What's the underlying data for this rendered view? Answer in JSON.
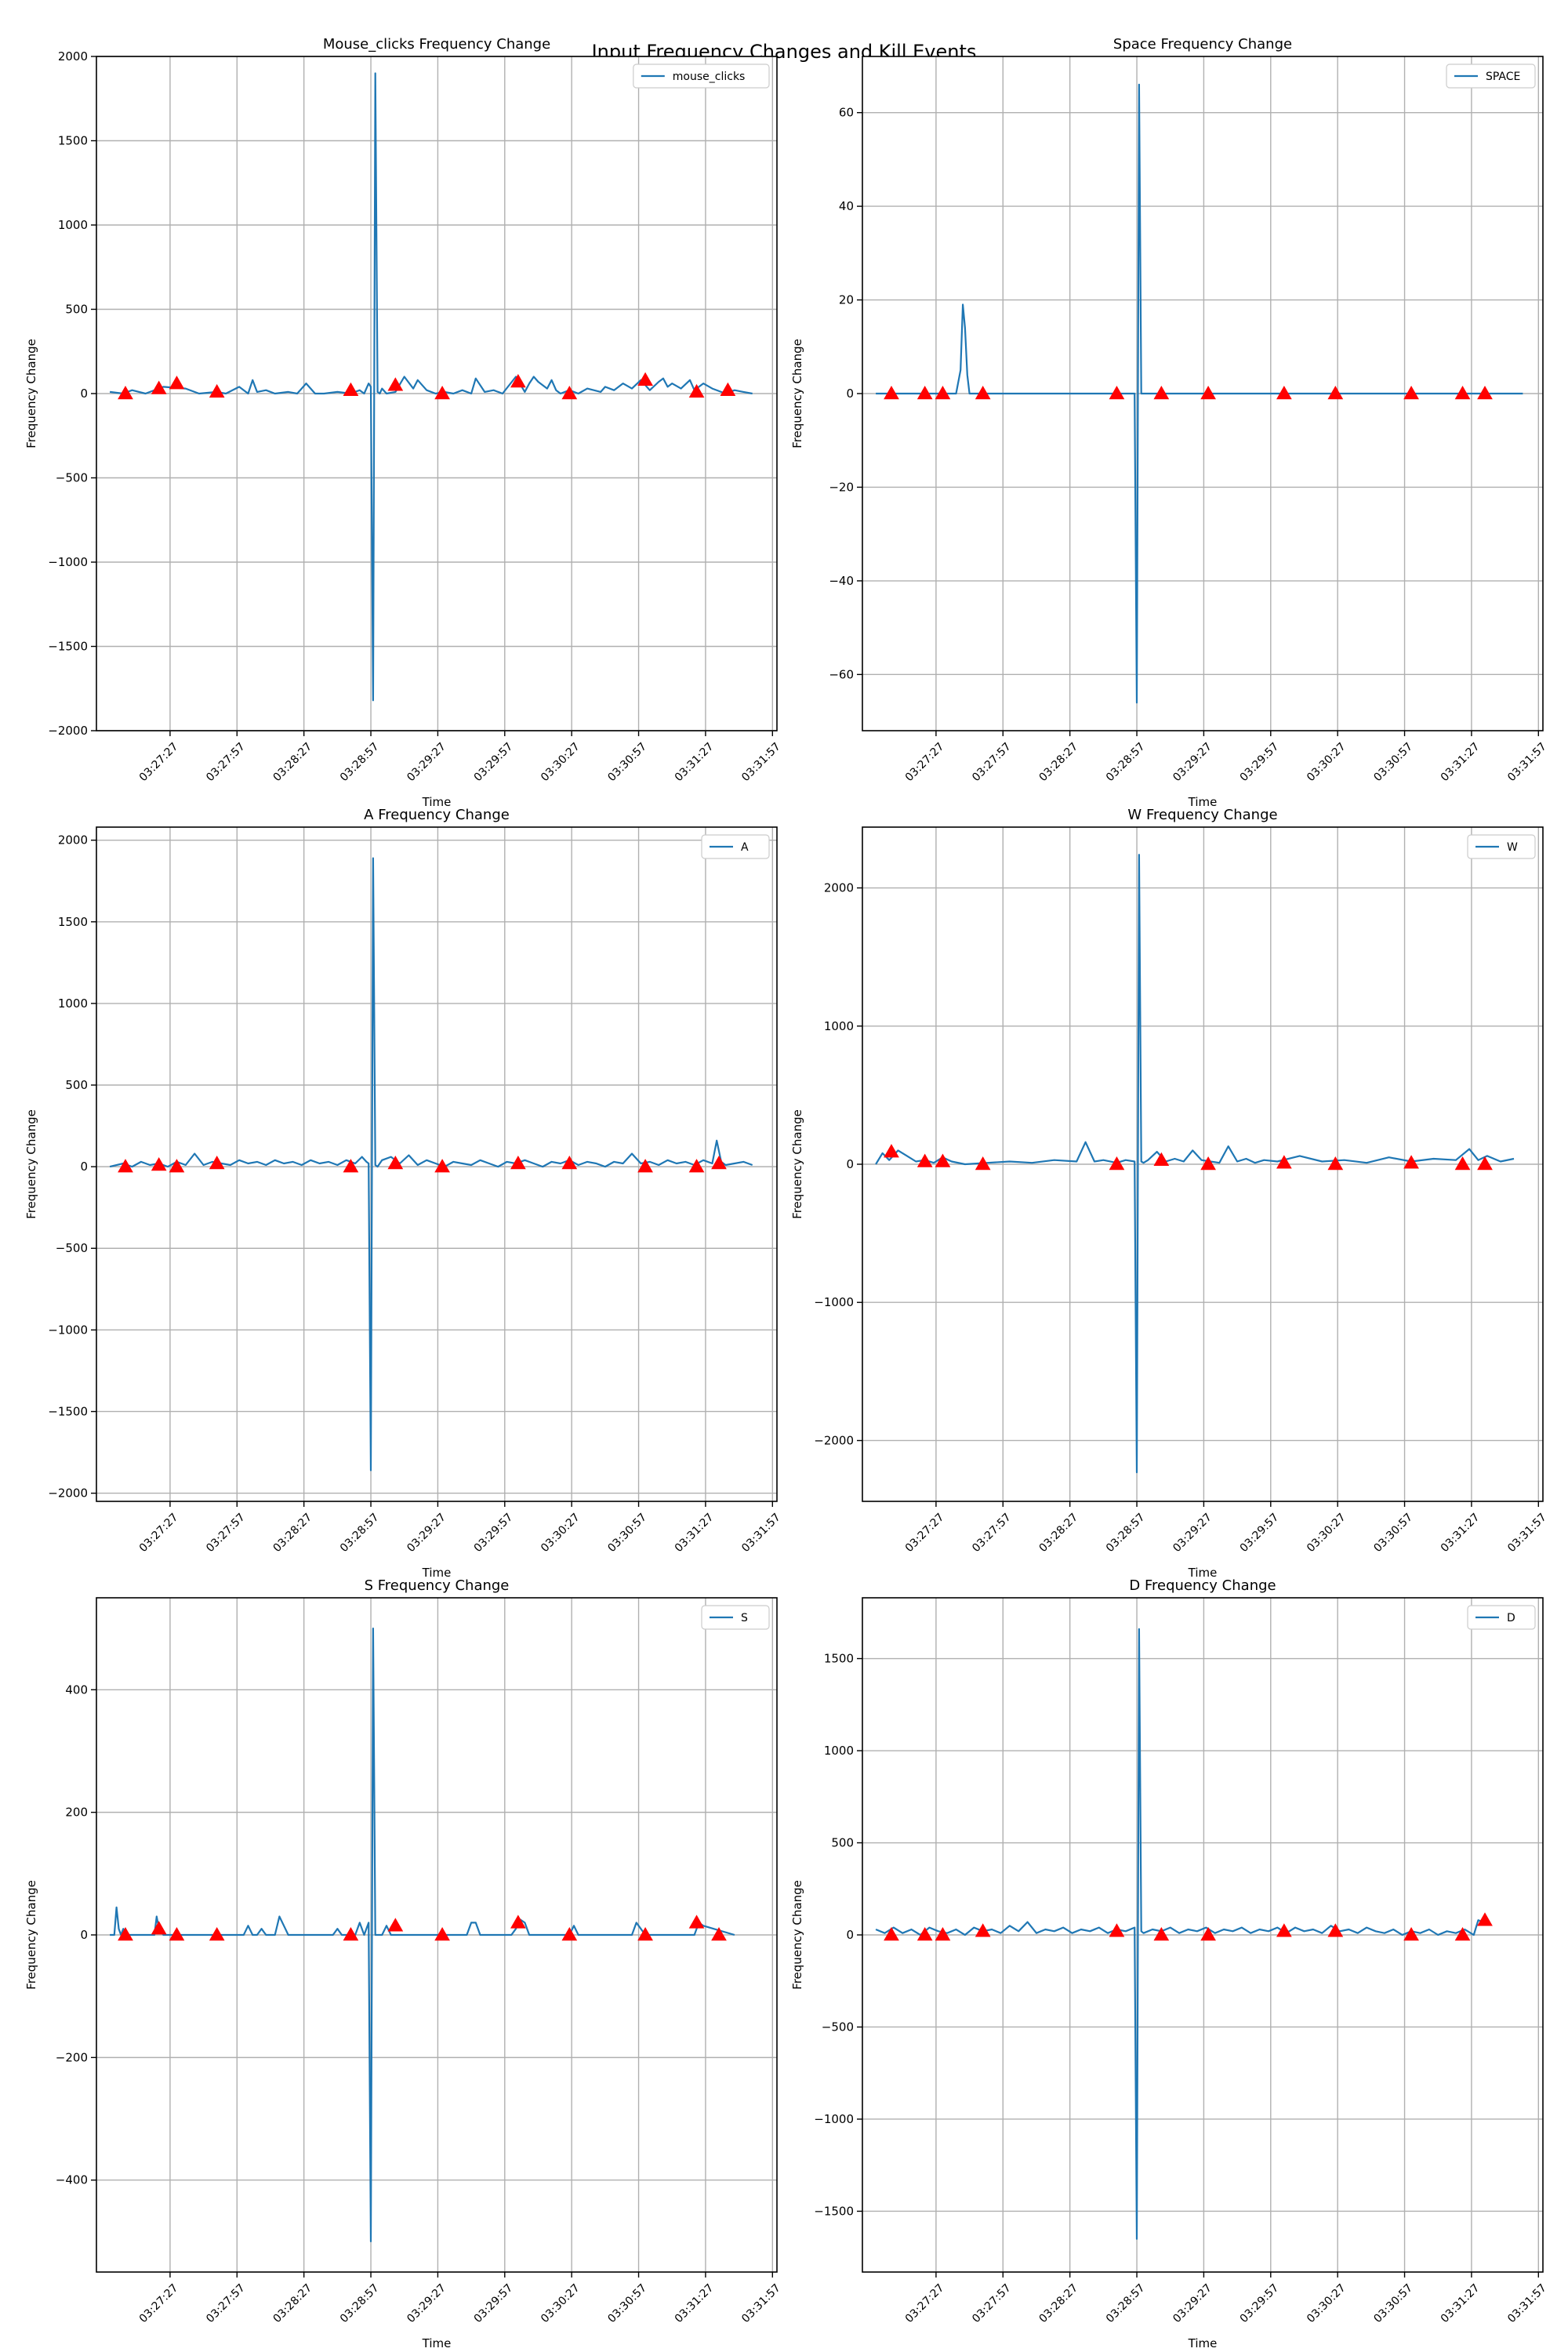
{
  "figure": {
    "title": "Input Frequency Changes and Kill Events"
  },
  "colors": {
    "line": "#1f77b4",
    "marker": "#ff0000",
    "grid": "#b0b0b0"
  },
  "x_axis": {
    "xlabel": "Time",
    "tick_labels": [
      "03:27:27",
      "03:27:57",
      "03:28:27",
      "03:28:57",
      "03:29:27",
      "03:29:57",
      "03:30:27",
      "03:30:57",
      "03:31:27",
      "03:31:57"
    ],
    "tick_seconds": [
      27,
      57,
      87,
      117,
      147,
      177,
      207,
      237,
      267,
      297
    ],
    "xlim_seconds": [
      -6,
      299
    ],
    "time_base": "03:27:00"
  },
  "chart_data": [
    {
      "type": "line",
      "title": "Mouse_clicks Frequency Change",
      "xlabel": "Time",
      "ylabel": "Frequency Change",
      "ylim": [
        -2000,
        2000
      ],
      "yticks": [
        -2000,
        -1500,
        -1000,
        -500,
        0,
        500,
        1000,
        1500,
        2000
      ],
      "grid": true,
      "legend": "top-right",
      "series": [
        {
          "name": "mouse_clicks",
          "x": [
            0,
            6,
            10,
            16,
            24,
            34,
            40,
            48,
            52,
            58,
            62,
            64,
            66,
            70,
            74,
            80,
            84,
            88,
            92,
            96,
            102,
            108,
            112,
            114,
            116,
            117,
            118,
            119,
            120,
            121,
            122,
            124,
            128,
            132,
            136,
            138,
            142,
            146,
            150,
            154,
            158,
            162,
            164,
            168,
            172,
            176,
            182,
            186,
            188,
            190,
            192,
            196,
            198,
            200,
            202,
            206,
            210,
            214,
            220,
            222,
            226,
            230,
            234,
            238,
            242,
            246,
            248,
            250,
            252,
            256,
            260,
            262,
            266,
            270,
            274,
            276,
            280,
            284,
            288
          ],
          "y": [
            10,
            0,
            20,
            0,
            40,
            30,
            0,
            10,
            0,
            40,
            0,
            80,
            10,
            20,
            0,
            10,
            0,
            60,
            0,
            0,
            10,
            0,
            20,
            0,
            60,
            40,
            -1820,
            1900,
            10,
            0,
            30,
            0,
            10,
            100,
            30,
            80,
            20,
            0,
            10,
            0,
            20,
            0,
            90,
            10,
            20,
            0,
            100,
            10,
            60,
            100,
            70,
            30,
            80,
            20,
            0,
            20,
            0,
            30,
            10,
            40,
            20,
            60,
            30,
            80,
            20,
            70,
            90,
            40,
            60,
            30,
            80,
            20,
            60,
            30,
            10,
            0,
            20,
            10,
            0
          ]
        }
      ],
      "kill_events": {
        "x": [
          7,
          22,
          30,
          48,
          108,
          128,
          149,
          183,
          206,
          240,
          263,
          277
        ],
        "y": [
          0,
          30,
          60,
          10,
          20,
          50,
          0,
          70,
          0,
          80,
          10,
          20
        ]
      }
    },
    {
      "type": "line",
      "title": "Space Frequency Change",
      "xlabel": "Time",
      "ylabel": "Frequency Change",
      "ylim": [
        -72,
        72
      ],
      "yticks": [
        -60,
        -40,
        -20,
        0,
        20,
        40,
        60
      ],
      "grid": true,
      "legend": "top-right",
      "series": [
        {
          "name": "SPACE",
          "x": [
            0,
            36,
            38,
            39,
            40,
            41,
            42,
            44,
            50,
            116,
            117,
            118,
            119,
            120,
            290
          ],
          "y": [
            0,
            0,
            5,
            19,
            14,
            4,
            0,
            0,
            0,
            0,
            -66,
            66,
            0,
            0,
            0
          ]
        }
      ],
      "kill_events": {
        "x": [
          7,
          22,
          30,
          48,
          108,
          128,
          149,
          183,
          206,
          240,
          263,
          273
        ],
        "y": [
          0,
          0,
          0,
          0,
          0,
          0,
          0,
          0,
          0,
          0,
          0,
          0
        ]
      }
    },
    {
      "type": "line",
      "title": "A Frequency Change",
      "xlabel": "Time",
      "ylabel": "Frequency Change",
      "ylim": [
        -2050,
        2080
      ],
      "yticks": [
        -2000,
        -1500,
        -1000,
        -500,
        0,
        500,
        1000,
        1500,
        2000
      ],
      "grid": true,
      "legend": "top-right",
      "series": [
        {
          "name": "A",
          "x": [
            0,
            6,
            10,
            14,
            18,
            22,
            26,
            30,
            34,
            38,
            42,
            46,
            50,
            54,
            58,
            62,
            66,
            70,
            74,
            78,
            82,
            86,
            90,
            94,
            98,
            102,
            106,
            110,
            113,
            115,
            116,
            117,
            118,
            119,
            120,
            122,
            126,
            130,
            134,
            138,
            142,
            146,
            150,
            154,
            158,
            162,
            166,
            170,
            174,
            178,
            182,
            186,
            190,
            194,
            198,
            202,
            206,
            210,
            214,
            218,
            222,
            226,
            230,
            234,
            238,
            242,
            246,
            250,
            254,
            258,
            262,
            266,
            270,
            272,
            274,
            276,
            280,
            284,
            288
          ],
          "y": [
            0,
            20,
            0,
            30,
            10,
            20,
            0,
            30,
            10,
            80,
            10,
            30,
            20,
            10,
            40,
            20,
            30,
            10,
            40,
            20,
            30,
            10,
            40,
            20,
            30,
            10,
            40,
            20,
            60,
            30,
            20,
            -1860,
            1890,
            10,
            0,
            40,
            60,
            20,
            70,
            10,
            40,
            20,
            0,
            30,
            20,
            10,
            40,
            20,
            0,
            30,
            20,
            40,
            20,
            0,
            30,
            20,
            40,
            10,
            30,
            20,
            0,
            30,
            20,
            80,
            20,
            30,
            10,
            40,
            20,
            30,
            10,
            40,
            20,
            160,
            30,
            10,
            20,
            30,
            10
          ]
        }
      ],
      "kill_events": {
        "x": [
          7,
          22,
          30,
          48,
          108,
          128,
          149,
          183,
          206,
          240,
          263,
          273
        ],
        "y": [
          0,
          10,
          0,
          20,
          0,
          20,
          0,
          20,
          20,
          0,
          0,
          20
        ]
      }
    },
    {
      "type": "line",
      "title": "W Frequency Change",
      "xlabel": "Time",
      "ylabel": "Frequency Change",
      "ylim": [
        -2440,
        2440
      ],
      "yticks": [
        -2000,
        -1000,
        0,
        1000,
        2000
      ],
      "grid": true,
      "legend": "top-right",
      "series": [
        {
          "name": "W",
          "x": [
            0,
            3,
            6,
            10,
            14,
            18,
            22,
            26,
            30,
            34,
            40,
            50,
            60,
            70,
            80,
            90,
            94,
            98,
            102,
            108,
            112,
            116,
            117,
            118,
            119,
            120,
            122,
            126,
            130,
            134,
            138,
            142,
            146,
            150,
            154,
            158,
            162,
            166,
            170,
            174,
            180,
            190,
            200,
            210,
            220,
            230,
            240,
            250,
            260,
            266,
            270,
            274,
            280,
            286
          ],
          "y": [
            0,
            80,
            30,
            100,
            60,
            20,
            30,
            10,
            50,
            20,
            0,
            10,
            20,
            10,
            30,
            20,
            160,
            20,
            30,
            10,
            30,
            20,
            -2230,
            2240,
            20,
            10,
            30,
            90,
            20,
            40,
            20,
            100,
            30,
            20,
            10,
            130,
            20,
            40,
            10,
            30,
            20,
            60,
            20,
            30,
            10,
            50,
            20,
            40,
            30,
            110,
            30,
            60,
            20,
            40
          ]
        }
      ],
      "kill_events": {
        "x": [
          7,
          22,
          30,
          48,
          108,
          128,
          149,
          183,
          206,
          240,
          263,
          273
        ],
        "y": [
          90,
          20,
          20,
          0,
          0,
          30,
          0,
          10,
          0,
          10,
          0,
          0
        ]
      }
    },
    {
      "type": "line",
      "title": "S Frequency Change",
      "xlabel": "Time",
      "ylabel": "Frequency Change",
      "ylim": [
        -550,
        550
      ],
      "yticks": [
        -400,
        -200,
        0,
        200,
        400
      ],
      "grid": true,
      "legend": "top-right",
      "series": [
        {
          "name": "S",
          "x": [
            0,
            2,
            3,
            4,
            5,
            6,
            8,
            20,
            21,
            22,
            24,
            60,
            62,
            64,
            66,
            68,
            70,
            74,
            76,
            78,
            80,
            100,
            102,
            104,
            106,
            110,
            112,
            114,
            116,
            117,
            118,
            119,
            120,
            122,
            124,
            126,
            128,
            160,
            162,
            164,
            166,
            180,
            182,
            184,
            186,
            188,
            206,
            208,
            210,
            234,
            236,
            238,
            240,
            242,
            262,
            264,
            266,
            280
          ],
          "y": [
            0,
            0,
            45,
            10,
            0,
            10,
            0,
            0,
            30,
            10,
            0,
            0,
            15,
            0,
            0,
            10,
            0,
            0,
            30,
            15,
            0,
            0,
            10,
            0,
            0,
            0,
            20,
            0,
            20,
            -500,
            500,
            0,
            0,
            0,
            15,
            0,
            0,
            0,
            20,
            20,
            0,
            0,
            10,
            25,
            20,
            0,
            0,
            15,
            0,
            0,
            20,
            10,
            0,
            0,
            0,
            20,
            15,
            0
          ]
        }
      ],
      "kill_events": {
        "x": [
          7,
          22,
          30,
          48,
          108,
          128,
          149,
          183,
          206,
          240,
          263,
          273
        ],
        "y": [
          0,
          10,
          0,
          0,
          0,
          15,
          0,
          20,
          0,
          0,
          20,
          0
        ]
      }
    },
    {
      "type": "line",
      "title": "D Frequency Change",
      "xlabel": "Time",
      "ylabel": "Frequency Change",
      "ylim": [
        -1830,
        1830
      ],
      "yticks": [
        -1500,
        -1000,
        -500,
        0,
        500,
        1000,
        1500
      ],
      "grid": true,
      "legend": "top-right",
      "series": [
        {
          "name": "D",
          "x": [
            0,
            4,
            8,
            12,
            16,
            20,
            24,
            28,
            32,
            36,
            40,
            44,
            48,
            52,
            56,
            60,
            64,
            68,
            72,
            76,
            80,
            84,
            88,
            92,
            96,
            100,
            104,
            108,
            112,
            116,
            117,
            118,
            119,
            120,
            124,
            128,
            132,
            136,
            140,
            144,
            148,
            152,
            156,
            160,
            164,
            168,
            172,
            176,
            180,
            184,
            188,
            192,
            196,
            200,
            204,
            208,
            212,
            216,
            220,
            224,
            228,
            232,
            236,
            240,
            244,
            248,
            252,
            256,
            260,
            264,
            268,
            270,
            272,
            274
          ],
          "y": [
            30,
            10,
            40,
            10,
            30,
            0,
            40,
            20,
            10,
            30,
            0,
            40,
            20,
            30,
            10,
            50,
            20,
            70,
            10,
            30,
            20,
            40,
            10,
            30,
            20,
            40,
            10,
            30,
            20,
            40,
            -1650,
            1660,
            20,
            10,
            30,
            20,
            40,
            10,
            30,
            20,
            40,
            10,
            30,
            20,
            40,
            10,
            30,
            20,
            40,
            10,
            40,
            20,
            30,
            10,
            50,
            20,
            30,
            10,
            40,
            20,
            10,
            30,
            0,
            20,
            10,
            30,
            0,
            20,
            10,
            30,
            0,
            80,
            70,
            90
          ]
        }
      ],
      "kill_events": {
        "x": [
          7,
          22,
          30,
          48,
          108,
          128,
          149,
          183,
          206,
          240,
          263,
          273
        ],
        "y": [
          0,
          0,
          0,
          20,
          20,
          0,
          0,
          20,
          20,
          0,
          0,
          80
        ]
      }
    }
  ]
}
